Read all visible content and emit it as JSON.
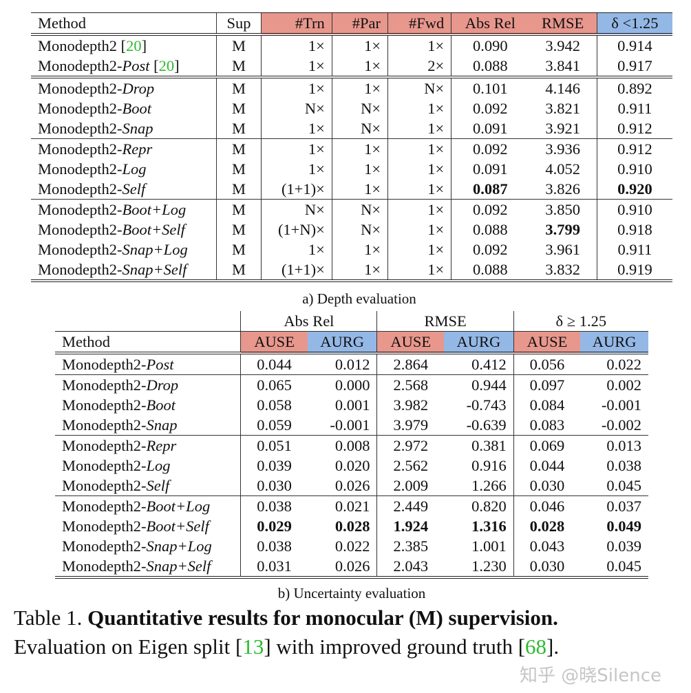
{
  "depth_table": {
    "headers": [
      "Method",
      "Sup",
      "#Trn",
      "#Par",
      "#Fwd",
      "Abs Rel",
      "RMSE",
      "δ <1.25"
    ],
    "header_colors": {
      "red": "#e8978d",
      "blue": "#94b8e6"
    },
    "groups": [
      [
        {
          "base": "Monodepth2",
          "variant": "",
          "ref": "20",
          "cells": [
            "M",
            "1×",
            "1×",
            "1×",
            "0.090",
            "3.942",
            "0.914"
          ],
          "bold": []
        },
        {
          "base": "Monodepth2-",
          "variant": "Post",
          "ref": "20",
          "cells": [
            "M",
            "1×",
            "1×",
            "2×",
            "0.088",
            "3.841",
            "0.917"
          ],
          "bold": []
        }
      ],
      [
        {
          "base": "Monodepth2-",
          "variant": "Drop",
          "cells": [
            "M",
            "1×",
            "1×",
            "N×",
            "0.101",
            "4.146",
            "0.892"
          ],
          "bold": []
        },
        {
          "base": "Monodepth2-",
          "variant": "Boot",
          "cells": [
            "M",
            "N×",
            "N×",
            "1×",
            "0.092",
            "3.821",
            "0.911"
          ],
          "bold": []
        },
        {
          "base": "Monodepth2-",
          "variant": "Snap",
          "cells": [
            "M",
            "1×",
            "N×",
            "1×",
            "0.091",
            "3.921",
            "0.912"
          ],
          "bold": []
        }
      ],
      [
        {
          "base": "Monodepth2-",
          "variant": "Repr",
          "cells": [
            "M",
            "1×",
            "1×",
            "1×",
            "0.092",
            "3.936",
            "0.912"
          ],
          "bold": []
        },
        {
          "base": "Monodepth2-",
          "variant": "Log",
          "cells": [
            "M",
            "1×",
            "1×",
            "1×",
            "0.091",
            "4.052",
            "0.910"
          ],
          "bold": []
        },
        {
          "base": "Monodepth2-",
          "variant": "Self",
          "cells": [
            "M",
            "(1+1)×",
            "1×",
            "1×",
            "0.087",
            "3.826",
            "0.920"
          ],
          "bold": [
            4,
            6
          ]
        }
      ],
      [
        {
          "base": "Monodepth2-",
          "variant": "Boot+Log",
          "cells": [
            "M",
            "N×",
            "N×",
            "1×",
            "0.092",
            "3.850",
            "0.910"
          ],
          "bold": []
        },
        {
          "base": "Monodepth2-",
          "variant": "Boot+Self",
          "cells": [
            "M",
            "(1+N)×",
            "N×",
            "1×",
            "0.088",
            "3.799",
            "0.918"
          ],
          "bold": [
            5
          ]
        },
        {
          "base": "Monodepth2-",
          "variant": "Snap+Log",
          "cells": [
            "M",
            "1×",
            "1×",
            "1×",
            "0.092",
            "3.961",
            "0.911"
          ],
          "bold": []
        },
        {
          "base": "Monodepth2-",
          "variant": "Snap+Self",
          "cells": [
            "M",
            "(1+1)×",
            "1×",
            "1×",
            "0.088",
            "3.832",
            "0.919"
          ],
          "bold": []
        }
      ]
    ],
    "caption": "a) Depth evaluation"
  },
  "uncertainty_table": {
    "group_headers": [
      "Abs Rel",
      "RMSE",
      "δ ≥ 1.25"
    ],
    "headers": [
      "Method",
      "AUSE",
      "AURG",
      "AUSE",
      "AURG",
      "AUSE",
      "AURG"
    ],
    "groups": [
      [
        {
          "base": "Monodepth2-",
          "variant": "Post",
          "cells": [
            "0.044",
            "0.012",
            "2.864",
            "0.412",
            "0.056",
            "0.022"
          ],
          "bold": []
        }
      ],
      [
        {
          "base": "Monodepth2-",
          "variant": "Drop",
          "cells": [
            "0.065",
            "0.000",
            "2.568",
            "0.944",
            "0.097",
            "0.002"
          ],
          "bold": []
        },
        {
          "base": "Monodepth2-",
          "variant": "Boot",
          "cells": [
            "0.058",
            "0.001",
            "3.982",
            "-0.743",
            "0.084",
            "-0.001"
          ],
          "bold": []
        },
        {
          "base": "Monodepth2-",
          "variant": "Snap",
          "cells": [
            "0.059",
            "-0.001",
            "3.979",
            "-0.639",
            "0.083",
            "-0.002"
          ],
          "bold": []
        }
      ],
      [
        {
          "base": "Monodepth2-",
          "variant": "Repr",
          "cells": [
            "0.051",
            "0.008",
            "2.972",
            "0.381",
            "0.069",
            "0.013"
          ],
          "bold": []
        },
        {
          "base": "Monodepth2-",
          "variant": "Log",
          "cells": [
            "0.039",
            "0.020",
            "2.562",
            "0.916",
            "0.044",
            "0.038"
          ],
          "bold": []
        },
        {
          "base": "Monodepth2-",
          "variant": "Self",
          "cells": [
            "0.030",
            "0.026",
            "2.009",
            "1.266",
            "0.030",
            "0.045"
          ],
          "bold": []
        }
      ],
      [
        {
          "base": "Monodepth2-",
          "variant": "Boot+Log",
          "cells": [
            "0.038",
            "0.021",
            "2.449",
            "0.820",
            "0.046",
            "0.037"
          ],
          "bold": []
        },
        {
          "base": "Monodepth2-",
          "variant": "Boot+Self",
          "cells": [
            "0.029",
            "0.028",
            "1.924",
            "1.316",
            "0.028",
            "0.049"
          ],
          "bold": [
            0,
            1,
            2,
            3,
            4,
            5
          ]
        },
        {
          "base": "Monodepth2-",
          "variant": "Snap+Log",
          "cells": [
            "0.038",
            "0.022",
            "2.385",
            "1.001",
            "0.043",
            "0.039"
          ],
          "bold": []
        },
        {
          "base": "Monodepth2-",
          "variant": "Snap+Self",
          "cells": [
            "0.031",
            "0.026",
            "2.043",
            "1.230",
            "0.030",
            "0.045"
          ],
          "bold": []
        }
      ]
    ],
    "caption": "b) Uncertainty evaluation"
  },
  "table_caption": {
    "label": "Table 1.",
    "title": "Quantitative results for monocular (M) supervision.",
    "text_before": "Evaluation on Eigen split [",
    "ref1": "13",
    "text_middle": "] with improved ground truth [",
    "ref2": "68",
    "text_after": "]."
  },
  "watermark": "知乎 @晓Silence"
}
